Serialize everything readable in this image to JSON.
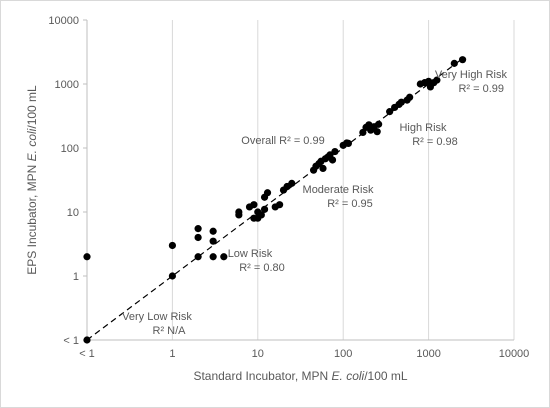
{
  "chart_data": {
    "type": "scatter",
    "x_scale": "log",
    "y_scale": "log",
    "xlim": [
      0.1,
      10000
    ],
    "ylim": [
      0.1,
      10000
    ],
    "x_ticks": [
      {
        "value": 0.1,
        "label": "< 1"
      },
      {
        "value": 1,
        "label": "1"
      },
      {
        "value": 10,
        "label": "10"
      },
      {
        "value": 100,
        "label": "100"
      },
      {
        "value": 1000,
        "label": "1000"
      },
      {
        "value": 10000,
        "label": "10000"
      }
    ],
    "y_ticks": [
      {
        "value": 0.1,
        "label": "< 1"
      },
      {
        "value": 1,
        "label": "1"
      },
      {
        "value": 10,
        "label": "10"
      },
      {
        "value": 100,
        "label": "100"
      },
      {
        "value": 1000,
        "label": "1000"
      },
      {
        "value": 10000,
        "label": "10000"
      }
    ],
    "xlabel_parts": [
      "Standard Incubator, MPN ",
      "E. coli",
      "/100 mL"
    ],
    "ylabel_parts": [
      "EPS Incubator, MPN ",
      "E. coli",
      "/100 mL"
    ],
    "grid": "vertical",
    "reference_line": {
      "style": "dashed",
      "from": [
        0.1,
        0.1
      ],
      "to": [
        2500,
        2500
      ]
    },
    "points": [
      [
        0.1,
        0.1
      ],
      [
        0.1,
        2
      ],
      [
        1,
        1
      ],
      [
        1,
        3
      ],
      [
        2,
        2
      ],
      [
        2,
        4
      ],
      [
        2,
        5.5
      ],
      [
        3,
        2
      ],
      [
        3,
        3.5
      ],
      [
        3,
        5
      ],
      [
        4,
        2
      ],
      [
        6,
        9
      ],
      [
        6,
        10
      ],
      [
        8,
        12
      ],
      [
        9,
        8
      ],
      [
        9,
        13
      ],
      [
        10,
        8
      ],
      [
        10,
        10
      ],
      [
        11,
        9
      ],
      [
        12,
        11
      ],
      [
        12,
        17
      ],
      [
        13,
        20
      ],
      [
        16,
        12
      ],
      [
        18,
        13
      ],
      [
        20,
        22
      ],
      [
        22,
        25
      ],
      [
        25,
        28
      ],
      [
        45,
        45
      ],
      [
        48,
        52
      ],
      [
        52,
        57
      ],
      [
        55,
        62
      ],
      [
        58,
        48
      ],
      [
        62,
        68
      ],
      [
        66,
        72
      ],
      [
        70,
        78
      ],
      [
        75,
        65
      ],
      [
        80,
        88
      ],
      [
        100,
        110
      ],
      [
        110,
        120
      ],
      [
        115,
        118
      ],
      [
        170,
        175
      ],
      [
        185,
        210
      ],
      [
        200,
        230
      ],
      [
        210,
        190
      ],
      [
        230,
        215
      ],
      [
        250,
        180
      ],
      [
        260,
        235
      ],
      [
        350,
        370
      ],
      [
        400,
        430
      ],
      [
        450,
        480
      ],
      [
        480,
        520
      ],
      [
        560,
        560
      ],
      [
        600,
        620
      ],
      [
        800,
        1000
      ],
      [
        900,
        1050
      ],
      [
        1000,
        1100
      ],
      [
        1050,
        900
      ],
      [
        1150,
        1050
      ],
      [
        1250,
        1150
      ],
      [
        2000,
        2100
      ],
      [
        2500,
        2400
      ]
    ],
    "annotations": [
      {
        "lines": [
          "Very High Risk",
          "R² = 0.99"
        ]
      },
      {
        "lines": [
          "High Risk",
          "R² = 0.98"
        ]
      },
      {
        "lines": [
          "Overall R² = 0.99"
        ]
      },
      {
        "lines": [
          "Moderate Risk",
          "R² = 0.95"
        ]
      },
      {
        "lines": [
          "Low Risk",
          "R² = 0.80"
        ]
      },
      {
        "lines": [
          "Very Low Risk",
          "R² N/A"
        ]
      }
    ]
  }
}
